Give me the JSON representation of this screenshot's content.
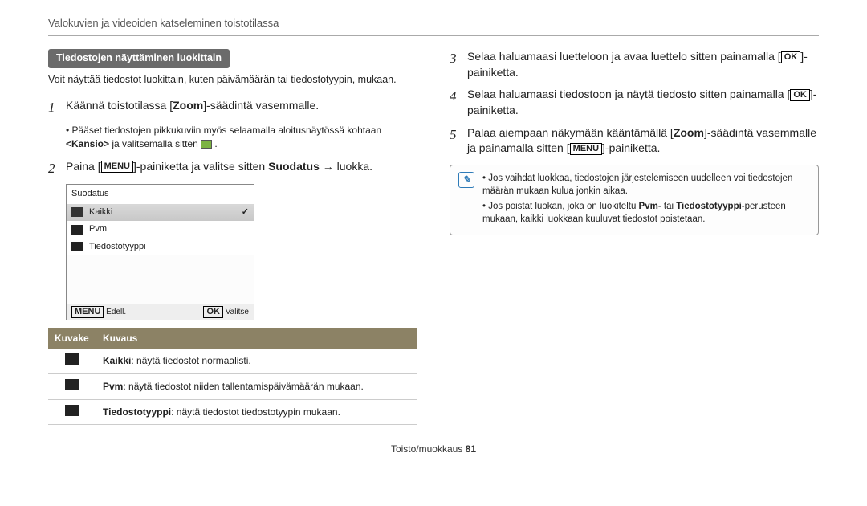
{
  "header": "Valokuvien ja videoiden katseleminen toistotilassa",
  "section_label": "Tiedostojen näyttäminen luokittain",
  "intro": "Voit näyttää tiedostot luokittain, kuten päivämäärän tai tiedostotyypin, mukaan.",
  "step1_pre": "Käännä toistotilassa [",
  "step1_bold": "Zoom",
  "step1_post": "]-säädintä vasemmalle.",
  "sub1_pre": "Pääset tiedostojen pikkukuviin myös selaamalla aloitusnäytössä kohtaan ",
  "sub1_bold": "<Kansio>",
  "sub1_post": " ja valitsemalla sitten ",
  "step2_pre": "Paina [",
  "step2_menu": "MENU",
  "step2_mid": "]-painiketta ja valitse sitten ",
  "step2_bold": "Suodatus",
  "step2_post": " → luokka.",
  "screen": {
    "title": "Suodatus",
    "r1": "Kaikki",
    "r2": "Pvm",
    "r3": "Tiedostotyyppi",
    "f1": "Edell.",
    "f2": "Valitse",
    "menu": "MENU",
    "ok": "OK"
  },
  "legend": {
    "h1": "Kuvake",
    "h2": "Kuvaus",
    "r1b": "Kaikki",
    "r1t": ": näytä tiedostot normaalisti.",
    "r2b": "Pvm",
    "r2t": ": näytä tiedostot niiden tallentamispäivämäärän mukaan.",
    "r3b": "Tiedostotyyppi",
    "r3t": ": näytä tiedostot tiedostotyypin mukaan."
  },
  "step3_pre": "Selaa haluamaasi luetteloon ja avaa luettelo sitten painamalla [",
  "step3_ok": "OK",
  "step3_post": "]-painiketta.",
  "step4_pre": "Selaa haluamaasi tiedostoon ja näytä tiedosto sitten painamalla [",
  "step4_ok": "OK",
  "step4_post": "]-painiketta.",
  "step5_pre": "Palaa aiempaan näkymään kääntämällä [",
  "step5_zoom": "Zoom",
  "step5_mid": "]-säädintä vasemmalle ja painamalla sitten [",
  "step5_menu": "MENU",
  "step5_post": "]-painiketta.",
  "note1": "Jos vaihdat luokkaa, tiedostojen järjestelemiseen uudelleen voi tiedostojen määrän mukaan kulua jonkin aikaa.",
  "note2_a": "Jos poistat luokan, joka on luokiteltu ",
  "note2_b": "Pvm",
  "note2_c": "- tai ",
  "note2_d": "Tiedostotyyppi",
  "note2_e": "-perusteen mukaan, kaikki luokkaan kuuluvat tiedostot poistetaan.",
  "footer_a": "Toisto/muokkaus  ",
  "footer_b": "81"
}
